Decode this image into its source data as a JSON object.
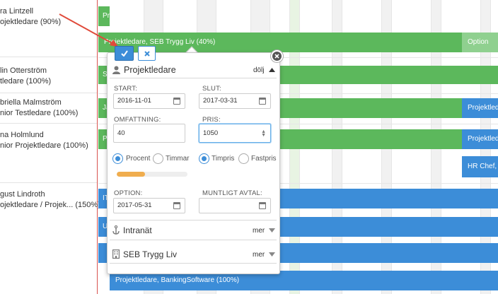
{
  "people": [
    {
      "name": "ra Lintzell",
      "role": "ojektledare (90%)"
    },
    {
      "name": "lin Otterström",
      "role": "tledare (100%)"
    },
    {
      "name": "briella Malmström",
      "role": "nior Testledare (100%)"
    },
    {
      "name": "na Holmlund",
      "role": "nior Projektledare (100%)"
    },
    {
      "name": "gust Lindroth",
      "role": "ojektledare / Projek...  (150%)"
    }
  ],
  "bars": {
    "r0": "Pr",
    "r1_main": "Projektledare, SEB Trygg Liv (40%)",
    "r1_option": "Option",
    "r2": "S",
    "r3": "Ja",
    "r3_right": "Projektleda",
    "r4": "P",
    "r4_right": "Projektleda",
    "r5_right": "HR Chef, B",
    "r6": "IT",
    "r7": "U",
    "r8": "",
    "r9": "Projektledare, BankingSoftware (100%)"
  },
  "popup": {
    "ok_icon": "check-icon",
    "cancel_icon": "close-icon",
    "section1_title": "Projektledare",
    "section1_toggle": "dölj",
    "start_label": "START:",
    "start_value": "2016-11-01",
    "end_label": "SLUT:",
    "end_value": "2017-03-31",
    "scope_label": "OMFATTNING:",
    "scope_value": "40",
    "price_label": "PRIS:",
    "price_value": "1050",
    "radio_percent": "Procent",
    "radio_hours": "Timmar",
    "radio_hourly": "Timpris",
    "radio_fixed": "Fastpris",
    "progress": 0.4,
    "option_label": "OPTION:",
    "option_value": "2017-05-31",
    "verbal_label": "MUNTLIGT AVTAL:",
    "verbal_value": "",
    "section2_title": "Intranät",
    "section2_toggle": "mer",
    "section3_title": "SEB Trygg Liv",
    "section3_toggle": "mer"
  },
  "colors": {
    "green": "#5cb85c",
    "blue": "#3c8dd8",
    "orange": "#f0ad4e",
    "red": "#d9534f"
  }
}
